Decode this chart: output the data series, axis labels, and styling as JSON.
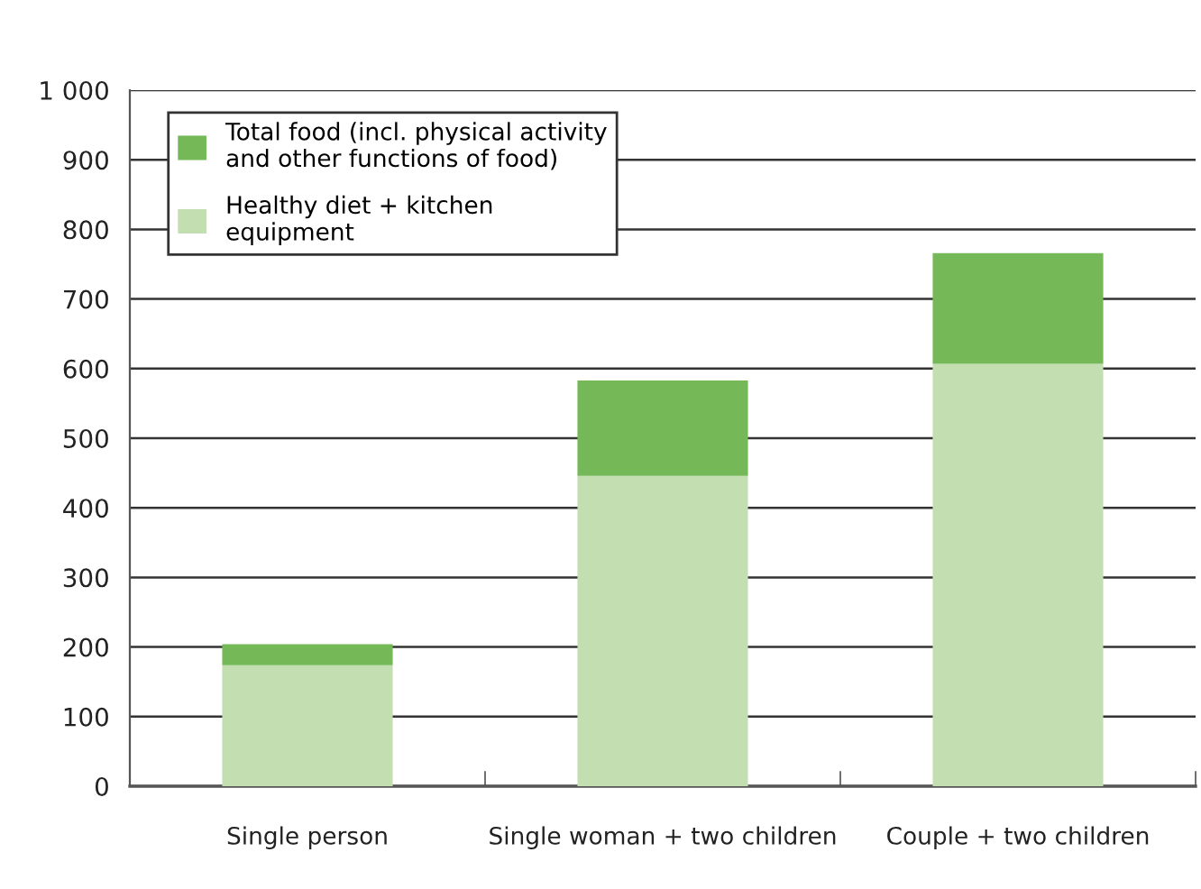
{
  "chart_data": {
    "type": "bar",
    "stacked": true,
    "categories": [
      "Single person",
      "Single woman + two children",
      "Couple + two children"
    ],
    "series": [
      {
        "name": "Healthy diet + kitchen\nequipment",
        "color": "#c3deb0",
        "values": [
          174,
          446,
          607
        ]
      },
      {
        "name": "Total food (incl. physical activity\nand other functions of food)",
        "color": "#74b857",
        "values": [
          30,
          137,
          159
        ]
      }
    ],
    "ylim": [
      0,
      1000
    ],
    "yticks": [
      0,
      100,
      200,
      300,
      400,
      500,
      600,
      700,
      800,
      900,
      {
        "value": 1000,
        "label": "1 000"
      }
    ],
    "grid": "y",
    "legend": "top left"
  }
}
